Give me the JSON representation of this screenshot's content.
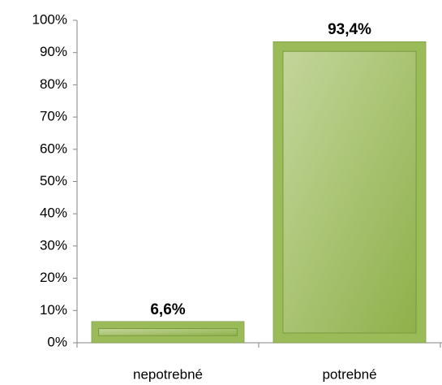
{
  "chart_data": {
    "type": "bar",
    "categories": [
      "nepotrebné",
      "potrebné"
    ],
    "values": [
      6.6,
      93.4
    ],
    "value_labels": [
      "6,6%",
      "93,4%"
    ],
    "color": "#9bbb59",
    "ylim": [
      0,
      100
    ],
    "yticks": [
      {
        "value": 0,
        "label": "0%"
      },
      {
        "value": 10,
        "label": "10%"
      },
      {
        "value": 20,
        "label": "20%"
      },
      {
        "value": 30,
        "label": "30%"
      },
      {
        "value": 40,
        "label": "40%"
      },
      {
        "value": 50,
        "label": "50%"
      },
      {
        "value": 60,
        "label": "60%"
      },
      {
        "value": 70,
        "label": "70%"
      },
      {
        "value": 80,
        "label": "80%"
      },
      {
        "value": 90,
        "label": "90%"
      },
      {
        "value": 100,
        "label": "100%"
      }
    ]
  }
}
